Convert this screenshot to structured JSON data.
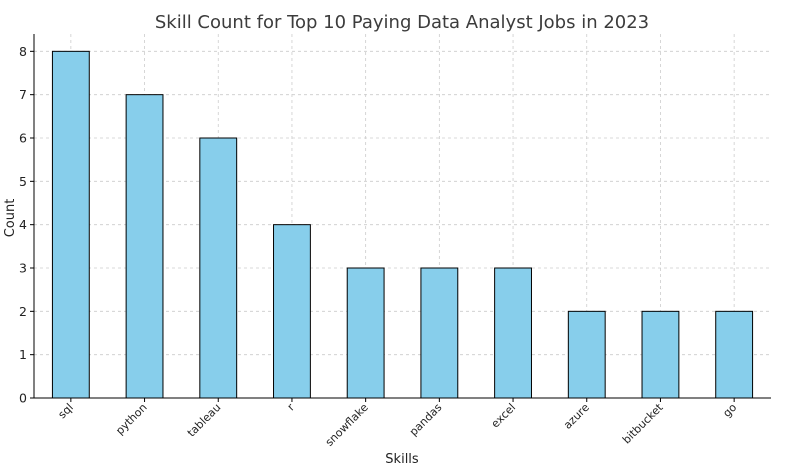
{
  "chart_data": {
    "type": "bar",
    "title": "Skill Count for Top 10 Paying Data Analyst Jobs in 2023",
    "xlabel": "Skills",
    "ylabel": "Count",
    "categories": [
      "sql",
      "python",
      "tableau",
      "r",
      "snowflake",
      "pandas",
      "excel",
      "azure",
      "bitbucket",
      "go"
    ],
    "values": [
      8,
      7,
      6,
      4,
      3,
      3,
      3,
      2,
      2,
      2
    ],
    "ylim": [
      0,
      8.4
    ],
    "yticks": [
      0,
      1,
      2,
      3,
      4,
      5,
      6,
      7,
      8
    ],
    "grid": true,
    "bar_color": "#87ceeb",
    "edge_color": "#000000"
  }
}
